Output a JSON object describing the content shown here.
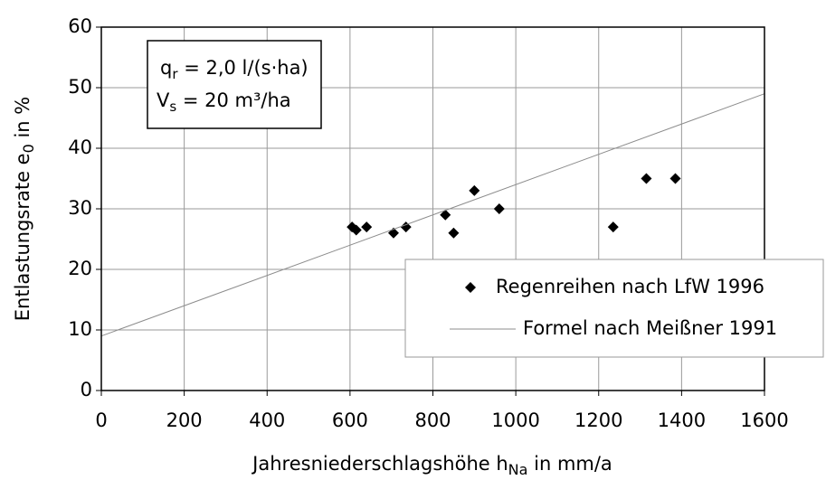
{
  "chart_data": {
    "type": "scatter",
    "xlabel": {
      "text": "Jahresniederschlagshöhe h",
      "sub": "Na",
      "after": " in mm/a"
    },
    "ylabel": {
      "text": "Entlastungsrate e",
      "sub": "0",
      "after": " in %"
    },
    "annotations": [
      {
        "symbol": "q",
        "sub": "r",
        "text": " = 2,0 l/(s·ha)"
      },
      {
        "symbol": "V",
        "sub": "s",
        "text": " = 20 m³/ha"
      }
    ],
    "xlim": [
      0,
      1600
    ],
    "xticks": [
      0,
      200,
      400,
      600,
      800,
      1000,
      1200,
      1400,
      1600
    ],
    "ylim": [
      0,
      60
    ],
    "yticks": [
      0,
      10,
      20,
      30,
      40,
      50,
      60
    ],
    "grid": true,
    "legend": "lower right",
    "series": [
      {
        "name": "Regenreihen nach LfW 1996",
        "type": "scatter",
        "color": "#000000",
        "x": [
          605,
          615,
          640,
          705,
          735,
          830,
          850,
          900,
          960,
          1235,
          1315,
          1385
        ],
        "values": [
          27,
          26.5,
          27,
          26,
          27,
          29,
          26,
          33,
          30,
          27,
          35,
          35
        ]
      },
      {
        "name": "Formel nach Meißner 1991",
        "type": "line",
        "color": "#8c8c8c",
        "x": [
          0,
          1600
        ],
        "values": [
          9,
          49
        ]
      }
    ]
  }
}
